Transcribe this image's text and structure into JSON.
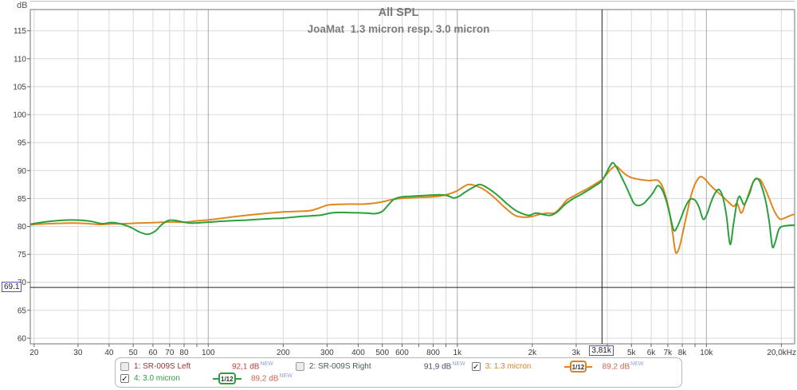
{
  "title": "All SPL",
  "subtitle": "JoaMat  1.3 micron resp. 3.0 micron",
  "axes": {
    "y_unit": "dB",
    "y_ticks": [
      115,
      110,
      105,
      100,
      95,
      90,
      85,
      80,
      75,
      70,
      65,
      60
    ],
    "db_gridlines": [
      60,
      65,
      70,
      75,
      80,
      85,
      90,
      95,
      100,
      105,
      110,
      115
    ],
    "grid_freqs": [
      20,
      30,
      40,
      50,
      60,
      70,
      80,
      90,
      100,
      200,
      300,
      400,
      500,
      600,
      700,
      800,
      900,
      1000,
      2000,
      3000,
      4000,
      5000,
      6000,
      7000,
      8000,
      9000,
      10000,
      20000
    ],
    "major_freqs": [
      100,
      1000,
      10000
    ],
    "x_ticks": [
      {
        "f": 20,
        "label": "20"
      },
      {
        "f": 30,
        "label": "30"
      },
      {
        "f": 40,
        "label": "40"
      },
      {
        "f": 50,
        "label": "50"
      },
      {
        "f": 60,
        "label": "60"
      },
      {
        "f": 70,
        "label": "70"
      },
      {
        "f": 80,
        "label": "80"
      },
      {
        "f": 100,
        "label": "100"
      },
      {
        "f": 200,
        "label": "200"
      },
      {
        "f": 300,
        "label": "300"
      },
      {
        "f": 400,
        "label": "400"
      },
      {
        "f": 500,
        "label": "500"
      },
      {
        "f": 600,
        "label": "600"
      },
      {
        "f": 800,
        "label": "800"
      },
      {
        "f": 1000,
        "label": "1k"
      },
      {
        "f": 2000,
        "label": "2k"
      },
      {
        "f": 3000,
        "label": "3k"
      },
      {
        "f": 5000,
        "label": "5k"
      },
      {
        "f": 6000,
        "label": "6k"
      },
      {
        "f": 7000,
        "label": "7k"
      },
      {
        "f": 8000,
        "label": "8k"
      },
      {
        "f": 10000,
        "label": "10k"
      },
      {
        "f": 20000,
        "label": "20,0kHz",
        "align": "end"
      }
    ]
  },
  "cursor": {
    "freq": 3810,
    "freq_label": "3,81k",
    "db": 69.1,
    "db_label": "69.1"
  },
  "colors": {
    "grid_minor": "#d9d9d9",
    "grid_major": "#a9a9a9",
    "plot_border": "#8a8a8a",
    "top_rule": "#c0c0c0",
    "cursor_line": "#202020",
    "tick_text": "#3c3c3c",
    "cursor_box_border": "#5656c0"
  },
  "legend": {
    "new_color": "#92a0d8",
    "items": [
      {
        "check": "",
        "label": "1: SR-009S Left",
        "label_color": "#9c3535",
        "value": "92,1 dB",
        "value_color": "#c24040",
        "new_tag": "NEW",
        "badge": ""
      },
      {
        "check": "",
        "label": "2: SR-009S Right",
        "label_color": "#44604a",
        "value": "91,9 dB",
        "value_color": "#4a4a72",
        "new_tag": "NEW",
        "badge": ""
      },
      {
        "check": "✓",
        "label": "3: 1.3 micron",
        "label_color": "#dd8322",
        "value": "89,2 dB",
        "value_color": "#cc6852",
        "new_tag": "NEW",
        "badge": "1/12",
        "badge_color": "#dd8322"
      },
      {
        "check": "✓",
        "label": "4: 3.0 micron",
        "label_color": "#2f9e41",
        "value": "89,2 dB",
        "value_color": "#cc6852",
        "new_tag": "NEW",
        "badge": "1/12",
        "badge_color": "#2f9e41"
      }
    ]
  },
  "chart_data": {
    "type": "line",
    "title": "All SPL",
    "subtitle": "JoaMat  1.3 micron resp. 3.0 micron",
    "xlabel": "",
    "ylabel": "dB",
    "x_scale": "log",
    "xlim": [
      19.3,
      22600
    ],
    "ylim": [
      59,
      118.8
    ],
    "grid": true,
    "legend_position": "bottom",
    "series": [
      {
        "name": "3: 1.3 micron",
        "color": "#e2861e",
        "smoothing": "1/12",
        "points": [
          [
            19.3,
            80.3
          ],
          [
            22,
            80.45
          ],
          [
            25,
            80.55
          ],
          [
            29,
            80.6
          ],
          [
            33,
            80.5
          ],
          [
            37,
            80.35
          ],
          [
            41,
            80.45
          ],
          [
            46,
            80.5
          ],
          [
            52,
            80.6
          ],
          [
            58,
            80.65
          ],
          [
            65,
            80.75
          ],
          [
            72,
            80.8
          ],
          [
            80,
            80.75
          ],
          [
            90,
            81.0
          ],
          [
            100,
            81.15
          ],
          [
            115,
            81.5
          ],
          [
            130,
            81.8
          ],
          [
            150,
            82.1
          ],
          [
            175,
            82.4
          ],
          [
            200,
            82.6
          ],
          [
            230,
            82.7
          ],
          [
            255,
            82.8
          ],
          [
            275,
            83.2
          ],
          [
            300,
            83.8
          ],
          [
            330,
            83.95
          ],
          [
            370,
            84.0
          ],
          [
            420,
            84.0
          ],
          [
            460,
            84.15
          ],
          [
            500,
            84.4
          ],
          [
            545,
            84.8
          ],
          [
            590,
            85.0
          ],
          [
            640,
            85.1
          ],
          [
            700,
            85.2
          ],
          [
            760,
            85.25
          ],
          [
            820,
            85.35
          ],
          [
            880,
            85.55
          ],
          [
            940,
            85.9
          ],
          [
            1000,
            86.4
          ],
          [
            1060,
            87.1
          ],
          [
            1110,
            87.5
          ],
          [
            1200,
            87.2
          ],
          [
            1300,
            86.4
          ],
          [
            1420,
            85.0
          ],
          [
            1550,
            83.4
          ],
          [
            1700,
            82.0
          ],
          [
            1850,
            81.65
          ],
          [
            2000,
            81.8
          ],
          [
            2150,
            82.2
          ],
          [
            2300,
            82.4
          ],
          [
            2450,
            82.4
          ],
          [
            2600,
            83.4
          ],
          [
            2750,
            84.7
          ],
          [
            2950,
            85.5
          ],
          [
            3150,
            86.2
          ],
          [
            3350,
            86.8
          ],
          [
            3550,
            87.5
          ],
          [
            3700,
            88.0
          ],
          [
            3810,
            88.4
          ],
          [
            3950,
            89.2
          ],
          [
            4150,
            90.3
          ],
          [
            4330,
            90.8
          ],
          [
            4500,
            90.2
          ],
          [
            4700,
            89.4
          ],
          [
            4950,
            88.8
          ],
          [
            5250,
            88.5
          ],
          [
            5600,
            88.3
          ],
          [
            5950,
            88.2
          ],
          [
            6200,
            88.3
          ],
          [
            6400,
            88.2
          ],
          [
            6650,
            87.2
          ],
          [
            6900,
            85.0
          ],
          [
            7100,
            82.6
          ],
          [
            7300,
            79.2
          ],
          [
            7500,
            75.6
          ],
          [
            7650,
            75.4
          ],
          [
            7850,
            76.8
          ],
          [
            8050,
            79.0
          ],
          [
            8350,
            82.3
          ],
          [
            8700,
            85.7
          ],
          [
            9050,
            87.8
          ],
          [
            9450,
            88.9
          ],
          [
            9900,
            88.4
          ],
          [
            10400,
            87.3
          ],
          [
            11000,
            86.3
          ],
          [
            11600,
            85.4
          ],
          [
            12100,
            84.6
          ],
          [
            12500,
            84.0
          ],
          [
            12900,
            83.6
          ],
          [
            13300,
            84.1
          ],
          [
            13800,
            82.4
          ],
          [
            14300,
            84.0
          ],
          [
            14800,
            85.9
          ],
          [
            15400,
            87.9
          ],
          [
            15900,
            88.5
          ],
          [
            16500,
            88.3
          ],
          [
            17100,
            87.0
          ],
          [
            17800,
            85.2
          ],
          [
            18500,
            83.3
          ],
          [
            19200,
            81.9
          ],
          [
            19800,
            81.3
          ],
          [
            20600,
            81.5
          ],
          [
            21600,
            81.9
          ],
          [
            22600,
            82.2
          ]
        ]
      },
      {
        "name": "4: 3.0 micron",
        "color": "#2aa03c",
        "smoothing": "1/12",
        "points": [
          [
            19.3,
            80.4
          ],
          [
            22,
            80.8
          ],
          [
            25,
            81.05
          ],
          [
            28,
            81.15
          ],
          [
            31,
            81.1
          ],
          [
            34,
            80.9
          ],
          [
            37.5,
            80.5
          ],
          [
            41,
            80.7
          ],
          [
            45,
            80.4
          ],
          [
            49,
            79.8
          ],
          [
            53,
            79.0
          ],
          [
            57,
            78.6
          ],
          [
            61,
            79.1
          ],
          [
            65,
            80.3
          ],
          [
            69,
            81.05
          ],
          [
            73,
            81.1
          ],
          [
            78,
            80.85
          ],
          [
            85,
            80.6
          ],
          [
            95,
            80.7
          ],
          [
            107,
            80.85
          ],
          [
            120,
            81.0
          ],
          [
            137,
            81.1
          ],
          [
            155,
            81.25
          ],
          [
            178,
            81.4
          ],
          [
            200,
            81.5
          ],
          [
            230,
            81.75
          ],
          [
            258,
            81.9
          ],
          [
            285,
            82.05
          ],
          [
            310,
            82.4
          ],
          [
            340,
            82.5
          ],
          [
            385,
            82.45
          ],
          [
            430,
            82.4
          ],
          [
            468,
            82.3
          ],
          [
            500,
            82.7
          ],
          [
            530,
            83.9
          ],
          [
            558,
            84.9
          ],
          [
            600,
            85.3
          ],
          [
            650,
            85.4
          ],
          [
            715,
            85.5
          ],
          [
            780,
            85.6
          ],
          [
            850,
            85.65
          ],
          [
            915,
            85.5
          ],
          [
            965,
            85.1
          ],
          [
            1015,
            85.4
          ],
          [
            1080,
            86.2
          ],
          [
            1160,
            87.0
          ],
          [
            1230,
            87.5
          ],
          [
            1320,
            86.9
          ],
          [
            1440,
            85.7
          ],
          [
            1570,
            84.2
          ],
          [
            1710,
            82.9
          ],
          [
            1850,
            82.2
          ],
          [
            1950,
            82.0
          ],
          [
            2070,
            82.4
          ],
          [
            2230,
            82.1
          ],
          [
            2370,
            82.0
          ],
          [
            2520,
            82.6
          ],
          [
            2700,
            83.9
          ],
          [
            2900,
            84.9
          ],
          [
            3100,
            85.6
          ],
          [
            3300,
            86.3
          ],
          [
            3550,
            87.2
          ],
          [
            3700,
            87.7
          ],
          [
            3810,
            88.2
          ],
          [
            3950,
            89.4
          ],
          [
            4100,
            90.8
          ],
          [
            4220,
            91.4
          ],
          [
            4380,
            90.4
          ],
          [
            4580,
            88.7
          ],
          [
            4800,
            86.8
          ],
          [
            5000,
            85.0
          ],
          [
            5150,
            84.0
          ],
          [
            5350,
            83.75
          ],
          [
            5600,
            84.1
          ],
          [
            5850,
            85.0
          ],
          [
            6100,
            86.0
          ],
          [
            6380,
            87.3
          ],
          [
            6650,
            86.5
          ],
          [
            6900,
            84.6
          ],
          [
            7150,
            81.9
          ],
          [
            7400,
            79.3
          ],
          [
            7650,
            80.0
          ],
          [
            7950,
            81.8
          ],
          [
            8250,
            83.6
          ],
          [
            8600,
            84.85
          ],
          [
            9000,
            84.7
          ],
          [
            9350,
            83.4
          ],
          [
            9700,
            81.3
          ],
          [
            10050,
            82.2
          ],
          [
            10450,
            84.4
          ],
          [
            10850,
            86.0
          ],
          [
            11250,
            86.6
          ],
          [
            11650,
            85.2
          ],
          [
            12050,
            81.8
          ],
          [
            12450,
            76.8
          ],
          [
            12850,
            80.5
          ],
          [
            13250,
            84.2
          ],
          [
            13550,
            85.4
          ],
          [
            13850,
            84.7
          ],
          [
            14150,
            83.9
          ],
          [
            14500,
            84.7
          ],
          [
            14950,
            86.1
          ],
          [
            15400,
            87.9
          ],
          [
            15850,
            88.6
          ],
          [
            16350,
            88.1
          ],
          [
            16900,
            86.3
          ],
          [
            17400,
            84.0
          ],
          [
            17900,
            80.6
          ],
          [
            18400,
            76.4
          ],
          [
            18900,
            77.2
          ],
          [
            19400,
            79.1
          ],
          [
            19900,
            79.9
          ],
          [
            21000,
            80.15
          ],
          [
            22600,
            80.25
          ]
        ]
      }
    ]
  }
}
